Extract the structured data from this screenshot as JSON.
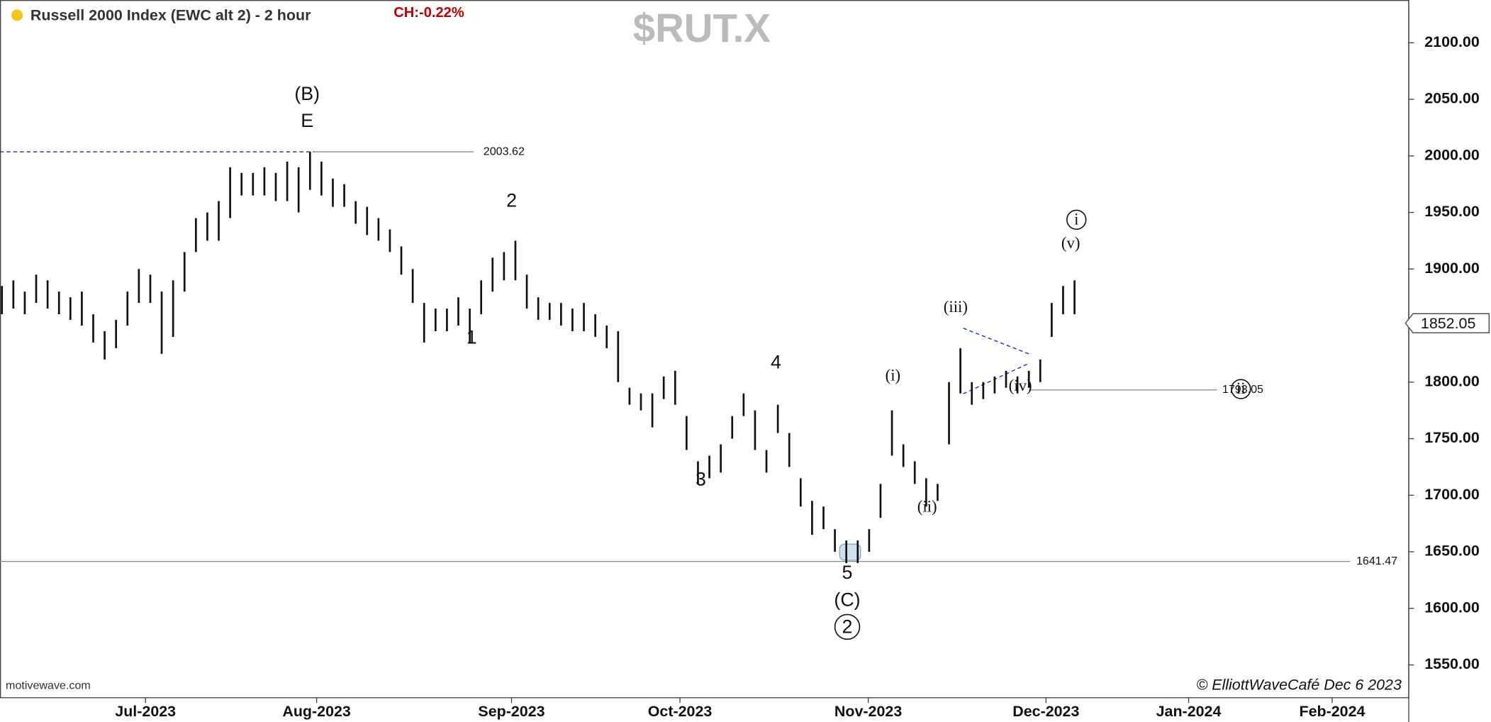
{
  "chart_data": {
    "type": "ohlc",
    "title": "Russell 2000 Index (EWC alt 2) - 2 hour",
    "change": "CH:-0.22%",
    "symbol": "$RUT.X",
    "source": "motivewave.com",
    "credit": "© ElliottWaveCafé Dec 6 2023",
    "high": [
      1885,
      1890,
      1880,
      1895,
      1890,
      1880,
      1875,
      1880,
      1860,
      1845,
      1855,
      1880,
      1900,
      1895,
      1880,
      1890,
      1915,
      1945,
      1950,
      1960,
      1990,
      1985,
      1985,
      1990,
      1985,
      1995,
      1990,
      2003.62,
      1995,
      1980,
      1975,
      1960,
      1955,
      1945,
      1935,
      1920,
      1900,
      1870,
      1865,
      1865,
      1875,
      1865,
      1890,
      1910,
      1915,
      1925,
      1895,
      1875,
      1870,
      1870,
      1865,
      1870,
      1860,
      1850,
      1845,
      1795,
      1790,
      1790,
      1805,
      1810,
      1770,
      1730,
      1735,
      1745,
      1770,
      1790,
      1775,
      1740,
      1780,
      1755,
      1715,
      1695,
      1690,
      1670,
      1660,
      1660,
      1670,
      1710,
      1775,
      1745,
      1730,
      1715,
      1710,
      1800,
      1830,
      1800,
      1800,
      1805,
      1810,
      1805,
      1810,
      1820,
      1870,
      1885,
      1890
    ],
    "low": [
      1860,
      1865,
      1860,
      1870,
      1865,
      1860,
      1855,
      1850,
      1835,
      1820,
      1830,
      1850,
      1870,
      1870,
      1825,
      1840,
      1880,
      1915,
      1925,
      1925,
      1945,
      1965,
      1965,
      1965,
      1960,
      1960,
      1950,
      1970,
      1965,
      1955,
      1955,
      1940,
      1930,
      1925,
      1915,
      1895,
      1870,
      1835,
      1845,
      1845,
      1850,
      1835,
      1860,
      1880,
      1890,
      1890,
      1865,
      1855,
      1855,
      1850,
      1845,
      1845,
      1840,
      1830,
      1800,
      1780,
      1775,
      1760,
      1785,
      1780,
      1740,
      1710,
      1715,
      1720,
      1750,
      1770,
      1740,
      1720,
      1755,
      1725,
      1690,
      1665,
      1670,
      1650,
      1640,
      1640,
      1650,
      1680,
      1735,
      1725,
      1710,
      1690,
      1695,
      1745,
      1790,
      1780,
      1785,
      1790,
      1795,
      1790,
      1795,
      1800,
      1840,
      1860,
      1860
    ],
    "last": 1852.05,
    "levels": [
      2003.62,
      1793.05,
      1641.47
    ],
    "xlim": [
      -0.17,
      123.25
    ],
    "ylim": [
      1521.4,
      2137.8
    ],
    "xticks": [
      {
        "value": 12.58,
        "label": "Jul-2023"
      },
      {
        "value": 27.58,
        "label": "Aug-2023"
      },
      {
        "value": 44.66,
        "label": "Sep-2023"
      },
      {
        "value": 59.42,
        "label": "Oct-2023"
      },
      {
        "value": 75.92,
        "label": "Nov-2023"
      },
      {
        "value": 91.5,
        "label": "Dec-2023"
      },
      {
        "value": 104,
        "label": "Jan-2024"
      },
      {
        "value": 116.58,
        "label": "Feb-2024"
      }
    ],
    "yticks": [
      {
        "value": 1550,
        "label": "1550.00"
      },
      {
        "value": 1600,
        "label": "1600.00"
      },
      {
        "value": 1650,
        "label": "1650.00"
      },
      {
        "value": 1700,
        "label": "1700.00"
      },
      {
        "value": 1750,
        "label": "1750.00"
      },
      {
        "value": 1800,
        "label": "1800.00"
      },
      {
        "value": 1850,
        "label": "1850.00"
      },
      {
        "value": 1900,
        "label": "1900.00"
      },
      {
        "value": 1950,
        "label": "1950.00"
      },
      {
        "value": 2000,
        "label": "2000.00"
      },
      {
        "value": 2050,
        "label": "2050.00"
      },
      {
        "value": 2100,
        "label": "2100.00"
      }
    ],
    "annotations": [
      "(B)",
      "E",
      "1",
      "2",
      "3",
      "4",
      "5",
      "(C)",
      "2",
      "(i)",
      "(ii)",
      "(iii)",
      "(iv)",
      "(v)",
      "i",
      "ii"
    ]
  }
}
